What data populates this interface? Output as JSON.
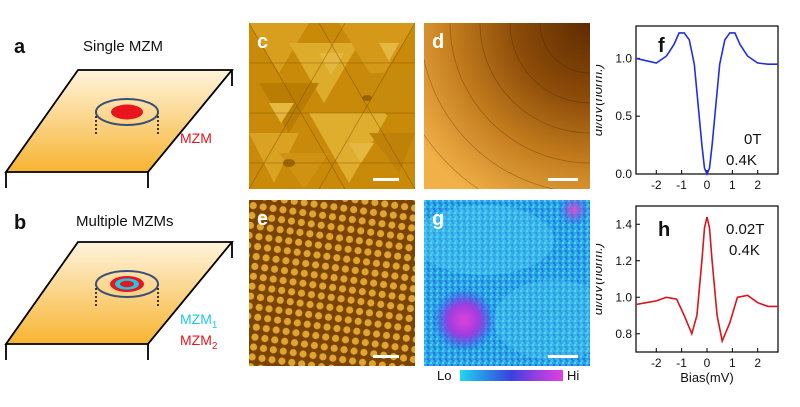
{
  "panels": {
    "a": {
      "label": "a",
      "title": "Single MZM",
      "mzm_label": "MZM"
    },
    "b": {
      "label": "b",
      "title": "Multiple MZMs",
      "mzm1_main": "MZM",
      "mzm1_sub": "1",
      "mzm2_main": "MZM",
      "mzm2_sub": "2"
    },
    "c": {
      "label": "c"
    },
    "d": {
      "label": "d"
    },
    "e": {
      "label": "e"
    },
    "g": {
      "label": "g",
      "colorbar_low": "Lo",
      "colorbar_high": "Hi"
    },
    "f": {
      "label": "f",
      "field": "0T",
      "temperature": "0.4K"
    },
    "h": {
      "label": "h",
      "field": "0.02T",
      "temperature": "0.4K"
    }
  },
  "colors": {
    "mzm_red": "#e8141e",
    "mzm_blue": "#1ec8e6",
    "curve_f": "#1f2fe0",
    "curve_h": "#d8141c",
    "sample_top": "#fff4dc",
    "sample_bottom": "#f7b432"
  },
  "chart_data": [
    {
      "id": "f",
      "type": "line",
      "ylabel": "dI/dV(norm.)",
      "xlabel": "",
      "xlim": [
        -2.8,
        2.8
      ],
      "ylim": [
        0.0,
        1.28
      ],
      "xticks": [
        -2,
        -1,
        0,
        1,
        2
      ],
      "yticks": [
        0.0,
        0.5,
        1.0
      ],
      "ytick_labels": [
        "0.0",
        "0.5",
        "1.0"
      ],
      "series": [
        {
          "x": [
            -2.8,
            -2.4,
            -2.0,
            -1.6,
            -1.3,
            -1.1,
            -0.9,
            -0.7,
            -0.5,
            -0.35,
            -0.2,
            -0.1,
            0.0,
            0.1,
            0.2,
            0.35,
            0.5,
            0.7,
            0.9,
            1.1,
            1.3,
            1.6,
            2.0,
            2.4,
            2.8
          ],
          "y": [
            1.0,
            0.98,
            0.96,
            1.02,
            1.12,
            1.22,
            1.22,
            1.16,
            0.95,
            0.6,
            0.25,
            0.05,
            0.0,
            0.05,
            0.25,
            0.6,
            0.95,
            1.16,
            1.22,
            1.22,
            1.12,
            1.02,
            0.96,
            0.95,
            0.95
          ]
        }
      ]
    },
    {
      "id": "h",
      "type": "line",
      "ylabel": "dI/dV(norm.)",
      "xlabel": "Bias(mV)",
      "xlim": [
        -2.8,
        2.8
      ],
      "ylim": [
        0.7,
        1.5
      ],
      "xticks": [
        -2,
        -1,
        0,
        1,
        2
      ],
      "yticks": [
        0.8,
        1.0,
        1.2,
        1.4
      ],
      "ytick_labels": [
        "0.8",
        "1.0",
        "1.2",
        "1.4"
      ],
      "series": [
        {
          "x": [
            -2.8,
            -2.4,
            -2.0,
            -1.6,
            -1.2,
            -0.9,
            -0.6,
            -0.4,
            -0.2,
            -0.1,
            0.0,
            0.1,
            0.2,
            0.4,
            0.6,
            0.9,
            1.2,
            1.6,
            2.0,
            2.4,
            2.8
          ],
          "y": [
            0.96,
            0.97,
            0.98,
            1.0,
            0.99,
            0.9,
            0.8,
            0.9,
            1.2,
            1.38,
            1.44,
            1.38,
            1.2,
            0.9,
            0.76,
            0.86,
            1.0,
            1.01,
            0.97,
            0.95,
            0.95
          ]
        }
      ]
    }
  ]
}
